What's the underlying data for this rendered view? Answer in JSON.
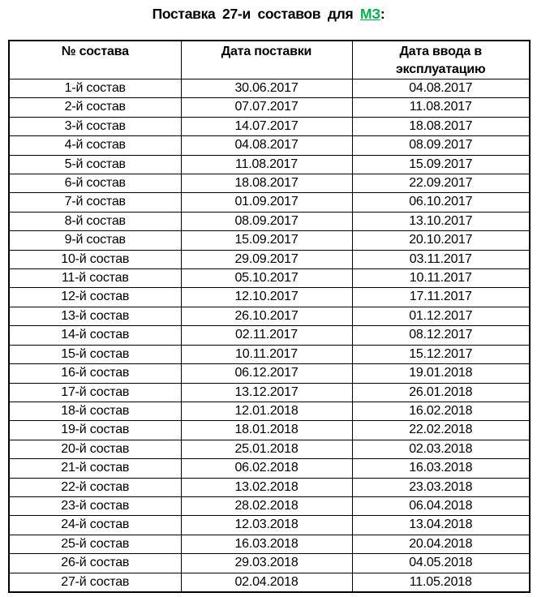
{
  "title": {
    "prefix": "Поставка 27-и составов для ",
    "link": "МЗ",
    "suffix": ":"
  },
  "colors": {
    "link_green": "#00B050",
    "text": "#000000",
    "border": "#000000",
    "background": "#ffffff"
  },
  "table": {
    "headers": [
      "№ состава",
      "Дата поставки",
      "Дата ввода в\nэксплуатацию"
    ],
    "rows": [
      [
        "1-й состав",
        "30.06.2017",
        "04.08.2017"
      ],
      [
        "2-й состав",
        "07.07.2017",
        "11.08.2017"
      ],
      [
        "3-й состав",
        "14.07.2017",
        "18.08.2017"
      ],
      [
        "4-й состав",
        "04.08.2017",
        "08.09.2017"
      ],
      [
        "5-й состав",
        "11.08.2017",
        "15.09.2017"
      ],
      [
        "6-й состав",
        "18.08.2017",
        "22.09.2017"
      ],
      [
        "7-й состав",
        "01.09.2017",
        "06.10.2017"
      ],
      [
        "8-й состав",
        "08.09.2017",
        "13.10.2017"
      ],
      [
        "9-й состав",
        "15.09.2017",
        "20.10.2017"
      ],
      [
        "10-й состав",
        "29.09.2017",
        "03.11.2017"
      ],
      [
        "11-й состав",
        "05.10.2017",
        "10.11.2017"
      ],
      [
        "12-й состав",
        "12.10.2017",
        "17.11.2017"
      ],
      [
        "13-й состав",
        "26.10.2017",
        "01.12.2017"
      ],
      [
        "14-й состав",
        "02.11.2017",
        "08.12.2017"
      ],
      [
        "15-й состав",
        "10.11.2017",
        "15.12.2017"
      ],
      [
        "16-й состав",
        "06.12.2017",
        "19.01.2018"
      ],
      [
        "17-й состав",
        "13.12.2017",
        "26.01.2018"
      ],
      [
        "18-й состав",
        "12.01.2018",
        "16.02.2018"
      ],
      [
        "19-й состав",
        "18.01.2018",
        "22.02.2018"
      ],
      [
        "20-й состав",
        "25.01.2018",
        "02.03.2018"
      ],
      [
        "21-й состав",
        "06.02.2018",
        "16.03.2018"
      ],
      [
        "22-й состав",
        "13.02.2018",
        "23.03.2018"
      ],
      [
        "23-й состав",
        "28.02.2018",
        "06.04.2018"
      ],
      [
        "24-й состав",
        "12.03.2018",
        "13.04.2018"
      ],
      [
        "25-й состав",
        "16.03.2018",
        "20.04.2018"
      ],
      [
        "26-й состав",
        "29.03.2018",
        "04.05.2018"
      ],
      [
        "27-й состав",
        "02.04.2018",
        "11.05.2018"
      ]
    ]
  }
}
